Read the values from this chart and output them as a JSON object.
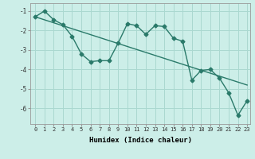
{
  "xlabel": "Humidex (Indice chaleur)",
  "bg_color": "#cceee8",
  "grid_color": "#aad8d0",
  "line_color": "#2a7a6a",
  "xlim": [
    -0.5,
    23.3
  ],
  "ylim": [
    -6.8,
    -0.6
  ],
  "yticks": [
    -6,
    -5,
    -4,
    -3,
    -2,
    -1
  ],
  "xticks": [
    0,
    1,
    2,
    3,
    4,
    5,
    6,
    7,
    8,
    9,
    10,
    11,
    12,
    13,
    14,
    15,
    16,
    17,
    18,
    19,
    20,
    21,
    22,
    23
  ],
  "jagged_x": [
    0,
    1,
    2,
    3,
    4,
    5,
    6,
    7,
    8,
    9,
    10,
    11,
    12,
    13,
    14,
    15,
    16,
    17,
    18,
    19,
    20,
    21,
    22,
    23
  ],
  "jagged_y": [
    -1.3,
    -1.0,
    -1.45,
    -1.7,
    -2.3,
    -3.2,
    -3.6,
    -3.55,
    -3.55,
    -2.65,
    -1.65,
    -1.75,
    -2.2,
    -1.75,
    -1.8,
    -2.4,
    -2.55,
    -4.55,
    -4.05,
    -4.0,
    -4.45,
    -5.2,
    -6.35,
    -5.6
  ],
  "trend_x": [
    0,
    23
  ],
  "trend_y": [
    -1.3,
    -4.8
  ]
}
